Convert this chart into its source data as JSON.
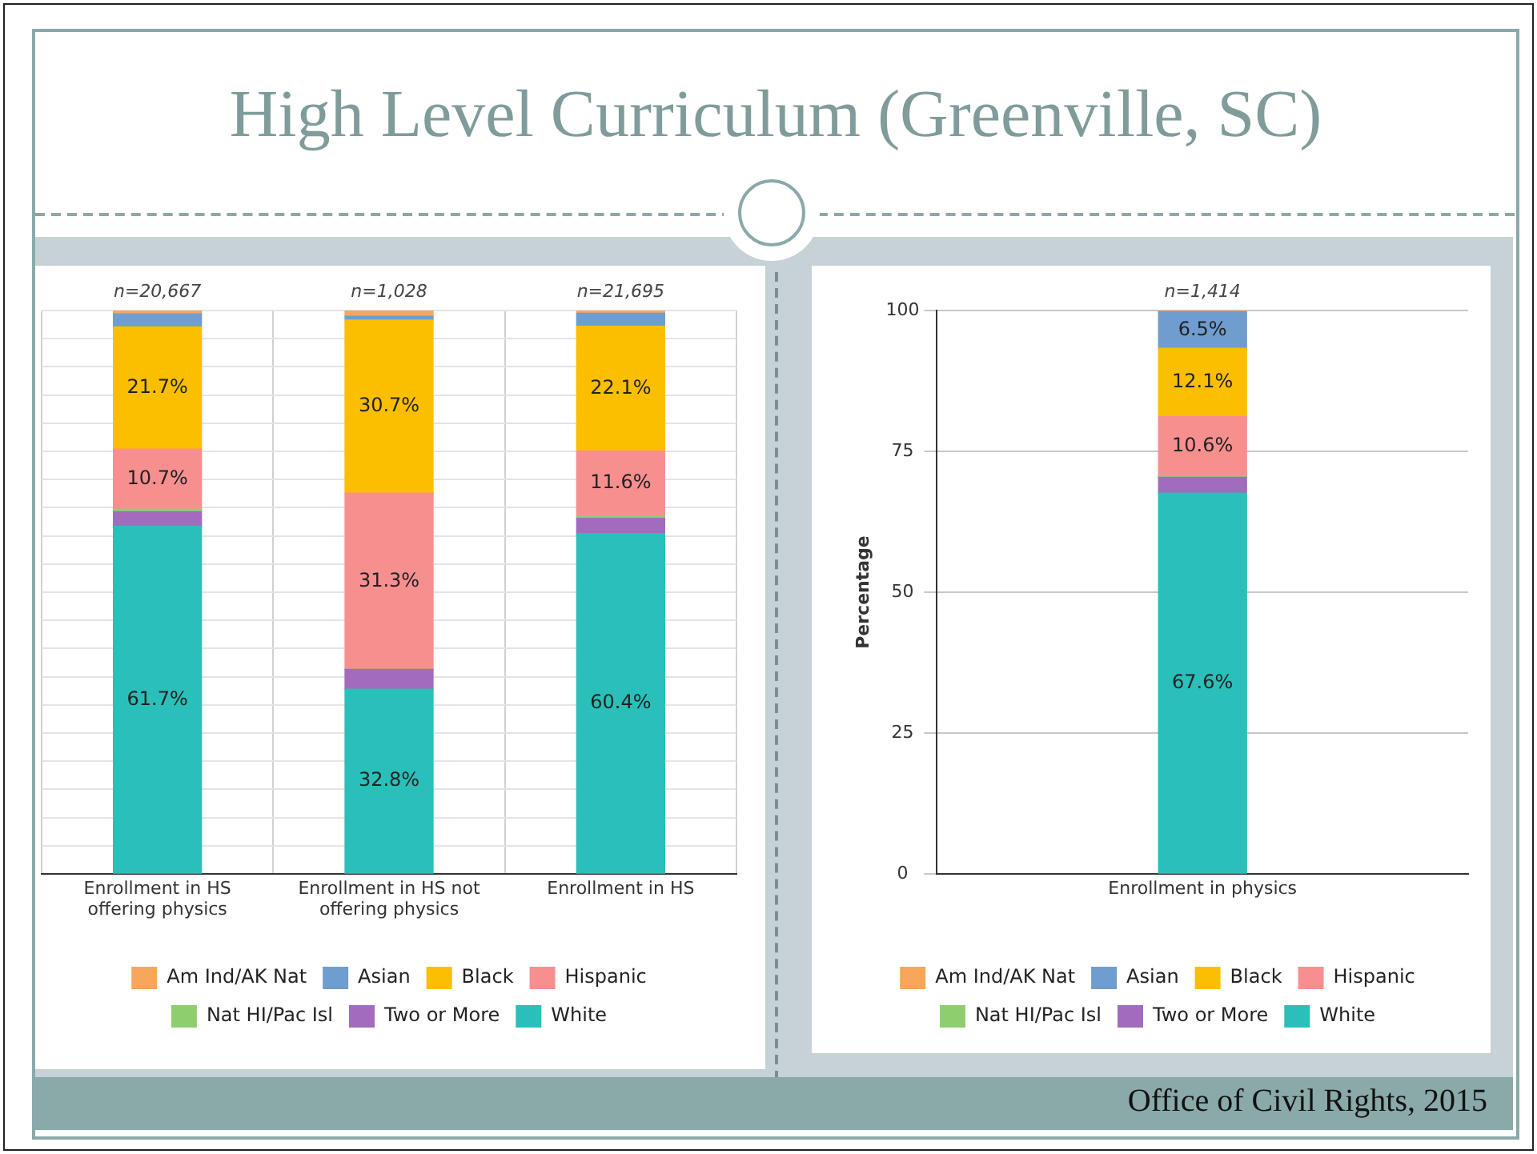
{
  "chart_data": [
    {
      "type": "bar",
      "title": "High Level Curriculum (Greenville, SC)",
      "stacked": true,
      "categories": [
        "Enrollment in HS offering physics",
        "Enrollment in HS not offering physics",
        "Enrollment in HS"
      ],
      "series": [
        {
          "name": "White",
          "color": "#2bbfba",
          "values": [
            61.7,
            32.8,
            60.4
          ],
          "value_labels": [
            "61.7%",
            "32.8%",
            "60.4%"
          ]
        },
        {
          "name": "Two or More",
          "color": "#a26bbd",
          "values": [
            2.6,
            3.5,
            2.7
          ],
          "value_labels": [
            null,
            null,
            null
          ]
        },
        {
          "name": "Nat HI/Pac Isl",
          "color": "#8fce6f",
          "values": [
            0.4,
            0.0,
            0.4
          ],
          "value_labels": [
            null,
            null,
            null
          ]
        },
        {
          "name": "Hispanic",
          "color": "#f88f8f",
          "values": [
            10.7,
            31.3,
            11.6
          ],
          "value_labels": [
            "10.7%",
            "31.3%",
            "11.6%"
          ]
        },
        {
          "name": "Black",
          "color": "#fbbf00",
          "values": [
            21.7,
            30.7,
            22.1
          ],
          "value_labels": [
            "21.7%",
            "30.7%",
            "22.1%"
          ]
        },
        {
          "name": "Asian",
          "color": "#6f9dcf",
          "values": [
            2.3,
            0.7,
            2.3
          ],
          "value_labels": [
            null,
            null,
            null
          ]
        },
        {
          "name": "Am Ind/AK Nat",
          "color": "#f8a65c",
          "values": [
            0.6,
            1.0,
            0.5
          ],
          "value_labels": [
            null,
            null,
            null
          ]
        }
      ],
      "annotations": [
        {
          "text": "n=20,667",
          "x": "Enrollment in HS offering physics",
          "y": 100
        },
        {
          "text": "n=1,028",
          "x": "Enrollment in HS not offering physics",
          "y": 100
        },
        {
          "text": "n=21,695",
          "x": "Enrollment in HS",
          "y": 100
        }
      ],
      "ylim": [
        0,
        100
      ],
      "yticks": [
        {
          "value": 0,
          "label": null
        },
        {
          "value": 5,
          "label": null
        },
        {
          "value": 10,
          "label": null
        },
        {
          "value": 15,
          "label": null
        },
        {
          "value": 20,
          "label": null
        },
        {
          "value": 25,
          "label": null
        },
        {
          "value": 30,
          "label": null
        },
        {
          "value": 35,
          "label": null
        },
        {
          "value": 40,
          "label": null
        },
        {
          "value": 45,
          "label": null
        },
        {
          "value": 50,
          "label": null
        },
        {
          "value": 55,
          "label": null
        },
        {
          "value": 60,
          "label": null
        },
        {
          "value": 65,
          "label": null
        },
        {
          "value": 70,
          "label": null
        },
        {
          "value": 75,
          "label": null
        },
        {
          "value": 80,
          "label": null
        },
        {
          "value": 85,
          "label": null
        },
        {
          "value": 90,
          "label": null
        },
        {
          "value": 95,
          "label": null
        },
        {
          "value": 100,
          "label": null
        }
      ],
      "tick_labels": "x",
      "grid": true,
      "legend": "bottom"
    },
    {
      "type": "bar",
      "stacked": true,
      "ylabel": "Percentage",
      "categories": [
        "Enrollment in physics"
      ],
      "series": [
        {
          "name": "White",
          "color": "#2bbfba",
          "values": [
            67.6
          ],
          "value_labels": [
            "67.6%"
          ]
        },
        {
          "name": "Two or More",
          "color": "#a26bbd",
          "values": [
            2.8
          ],
          "value_labels": [
            null
          ]
        },
        {
          "name": "Nat HI/Pac Isl",
          "color": "#8fce6f",
          "values": [
            0.2
          ],
          "value_labels": [
            null
          ]
        },
        {
          "name": "Hispanic",
          "color": "#f88f8f",
          "values": [
            10.6
          ],
          "value_labels": [
            "10.6%"
          ]
        },
        {
          "name": "Black",
          "color": "#fbbf00",
          "values": [
            12.1
          ],
          "value_labels": [
            "12.1%"
          ]
        },
        {
          "name": "Asian",
          "color": "#6f9dcf",
          "values": [
            6.5
          ],
          "value_labels": [
            "6.5%"
          ]
        },
        {
          "name": "Am Ind/AK Nat",
          "color": "#f8a65c",
          "values": [
            0.2
          ],
          "value_labels": [
            null
          ]
        }
      ],
      "annotations": [
        {
          "text": "n=1,414",
          "x": "Enrollment in physics",
          "y": 100
        },
        "Office of Civil Rights, 2015"
      ],
      "ylim": [
        0,
        100
      ],
      "yticks": [
        0,
        25,
        50,
        75,
        100
      ],
      "grid": "y",
      "legend": "bottom"
    }
  ]
}
